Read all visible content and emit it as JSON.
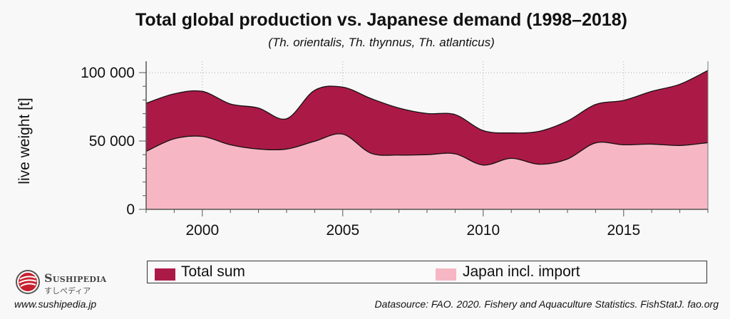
{
  "chart_data": {
    "type": "area",
    "stacked": false,
    "title": "Total global production vs. Japanese demand (1998–2018)",
    "subtitle": "(Th. orientalis, Th. thynnus, Th. atlanticus)",
    "xlabel": "",
    "ylabel": "live weight [t]",
    "xlim": [
      1998,
      2018
    ],
    "ylim": [
      0,
      100000
    ],
    "x_ticks": [
      "2000",
      "2005",
      "2010",
      "2015"
    ],
    "y_ticks": [
      "0",
      "50 000",
      "100 000"
    ],
    "grid": "dotted at major ticks",
    "legend_position": "bottom",
    "x": [
      1998,
      1999,
      2000,
      2001,
      2002,
      2003,
      2004,
      2005,
      2006,
      2007,
      2008,
      2009,
      2010,
      2011,
      2012,
      2013,
      2014,
      2015,
      2016,
      2017,
      2018
    ],
    "series": [
      {
        "name": "Total sum",
        "color": "#ab1a47",
        "values": [
          77600,
          84500,
          86300,
          77100,
          74100,
          66300,
          87100,
          89400,
          81100,
          74100,
          70100,
          69300,
          57600,
          55900,
          57100,
          64600,
          76700,
          79700,
          86300,
          91500,
          101600
        ]
      },
      {
        "name": "Japan incl. import",
        "color": "#f7b6c4",
        "values": [
          42400,
          51600,
          53300,
          47200,
          44100,
          44100,
          49800,
          55000,
          41100,
          39700,
          40000,
          40600,
          32400,
          37300,
          33000,
          36800,
          48600,
          47200,
          47700,
          46700,
          48800
        ]
      }
    ]
  },
  "branding": {
    "name": "Sushipedia",
    "kana": "すしぺディア",
    "url": "www.sushipedia.jp"
  },
  "source": "Datasource: FAO. 2020. Fishery and Aquaculture Statistics. FishStatJ. fao.org"
}
